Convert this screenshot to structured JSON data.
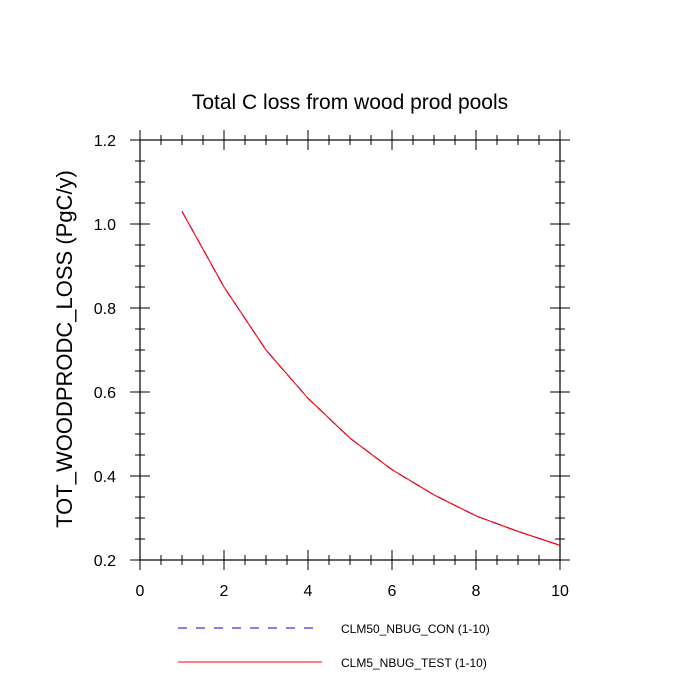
{
  "chart_data": {
    "type": "line",
    "title": "Total C loss from wood prod pools",
    "xlabel": "",
    "ylabel": "TOT_WOODPRODC_LOSS  (PgC/y)",
    "xlim": [
      0,
      10
    ],
    "ylim": [
      0.2,
      1.2
    ],
    "x_ticks": [
      0,
      2,
      4,
      6,
      8,
      10
    ],
    "y_ticks": [
      0.2,
      0.4,
      0.6,
      0.8,
      1.0,
      1.2
    ],
    "x_tick_labels": [
      "0",
      "2",
      "4",
      "6",
      "8",
      "10"
    ],
    "y_tick_labels": [
      "0.2",
      "0.4",
      "0.6",
      "0.8",
      "1.0",
      "1.2"
    ],
    "grid": false,
    "legend_position": "bottom",
    "x": [
      1,
      2,
      3,
      4,
      5,
      6,
      7,
      8,
      9,
      10
    ],
    "series": [
      {
        "name": "CLM50_NBUG_CON (1-10)",
        "color": "#0000ff",
        "style": "dashed",
        "values": [
          1.03,
          0.85,
          0.7,
          0.585,
          0.49,
          0.415,
          0.355,
          0.305,
          0.268,
          0.235
        ]
      },
      {
        "name": "CLM5_NBUG_TEST (1-10)",
        "color": "#ff0000",
        "style": "solid",
        "values": [
          1.03,
          0.85,
          0.7,
          0.585,
          0.49,
          0.415,
          0.355,
          0.305,
          0.268,
          0.235
        ]
      }
    ]
  }
}
